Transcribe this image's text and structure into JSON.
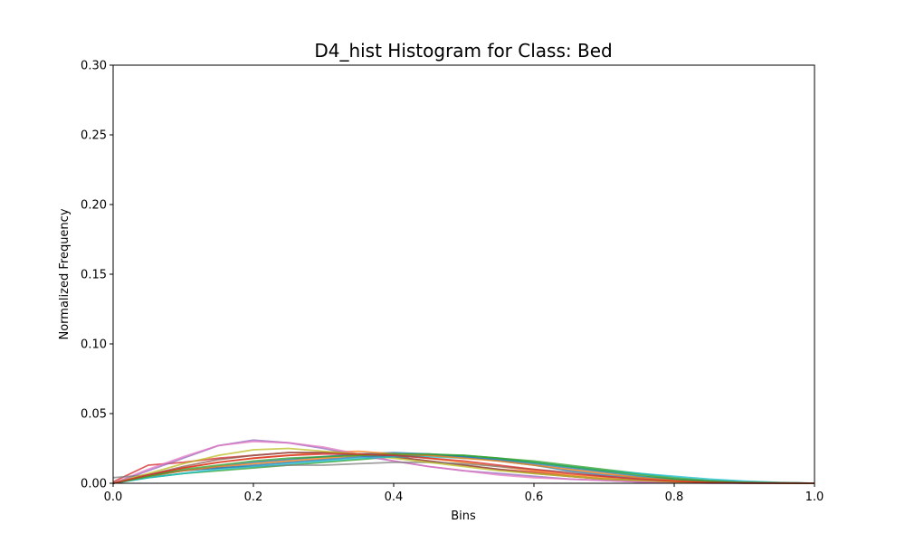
{
  "chart_data": {
    "type": "line",
    "title": "D4_hist Histogram for Class: Bed",
    "xlabel": "Bins",
    "ylabel": "Normalized Frequency",
    "xlim": [
      0.0,
      1.0
    ],
    "ylim": [
      0.0,
      0.3
    ],
    "xticks": [
      "0.0",
      "0.2",
      "0.4",
      "0.6",
      "0.8",
      "1.0"
    ],
    "yticks": [
      "0.00",
      "0.05",
      "0.10",
      "0.15",
      "0.20",
      "0.25",
      "0.30"
    ],
    "grid": false,
    "legend": "none",
    "x": [
      0.0,
      0.05,
      0.1,
      0.15,
      0.2,
      0.25,
      0.3,
      0.35,
      0.4,
      0.45,
      0.5,
      0.55,
      0.6,
      0.65,
      0.7,
      0.75,
      0.8,
      0.85,
      0.9,
      0.95,
      1.0
    ],
    "series": [
      {
        "color": "#1f77b4",
        "values": [
          0.0,
          0.005,
          0.009,
          0.012,
          0.015,
          0.017,
          0.019,
          0.021,
          0.022,
          0.021,
          0.019,
          0.016,
          0.013,
          0.009,
          0.006,
          0.004,
          0.002,
          0.001,
          0.0005,
          0.0002,
          0.0
        ]
      },
      {
        "color": "#ff7f0e",
        "values": [
          0.0,
          0.006,
          0.011,
          0.015,
          0.018,
          0.02,
          0.022,
          0.023,
          0.021,
          0.018,
          0.015,
          0.012,
          0.009,
          0.006,
          0.004,
          0.002,
          0.001,
          0.0005,
          0.0002,
          0.0001,
          0.0
        ]
      },
      {
        "color": "#2ca02c",
        "values": [
          0.0,
          0.004,
          0.007,
          0.009,
          0.011,
          0.013,
          0.015,
          0.017,
          0.019,
          0.02,
          0.02,
          0.018,
          0.016,
          0.013,
          0.01,
          0.007,
          0.004,
          0.002,
          0.001,
          0.0004,
          0.0
        ]
      },
      {
        "color": "#d62728",
        "values": [
          0.001,
          0.013,
          0.015,
          0.018,
          0.02,
          0.022,
          0.022,
          0.021,
          0.019,
          0.016,
          0.013,
          0.01,
          0.008,
          0.005,
          0.003,
          0.002,
          0.001,
          0.0004,
          0.0002,
          0.0001,
          0.0
        ]
      },
      {
        "color": "#9467bd",
        "values": [
          0.0,
          0.009,
          0.018,
          0.027,
          0.031,
          0.029,
          0.025,
          0.02,
          0.016,
          0.012,
          0.009,
          0.007,
          0.005,
          0.003,
          0.002,
          0.001,
          0.0005,
          0.0002,
          0.0001,
          0.0,
          0.0
        ]
      },
      {
        "color": "#8c564b",
        "values": [
          0.0,
          0.006,
          0.012,
          0.017,
          0.02,
          0.022,
          0.022,
          0.021,
          0.019,
          0.016,
          0.013,
          0.01,
          0.007,
          0.005,
          0.003,
          0.002,
          0.001,
          0.0005,
          0.0002,
          0.0001,
          0.0
        ]
      },
      {
        "color": "#e377c2",
        "values": [
          0.0,
          0.01,
          0.019,
          0.027,
          0.03,
          0.029,
          0.026,
          0.021,
          0.016,
          0.012,
          0.009,
          0.006,
          0.004,
          0.003,
          0.002,
          0.001,
          0.0004,
          0.0002,
          0.0001,
          0.0,
          0.0
        ]
      },
      {
        "color": "#7f7f7f",
        "values": [
          0.004,
          0.006,
          0.009,
          0.011,
          0.012,
          0.013,
          0.013,
          0.014,
          0.015,
          0.015,
          0.014,
          0.012,
          0.01,
          0.008,
          0.005,
          0.003,
          0.002,
          0.001,
          0.0005,
          0.0002,
          0.0
        ]
      },
      {
        "color": "#bcbd22",
        "values": [
          0.0,
          0.007,
          0.014,
          0.02,
          0.024,
          0.025,
          0.023,
          0.021,
          0.018,
          0.015,
          0.012,
          0.009,
          0.007,
          0.005,
          0.003,
          0.002,
          0.001,
          0.0005,
          0.0002,
          0.0001,
          0.0
        ]
      },
      {
        "color": "#17becf",
        "values": [
          0.0,
          0.004,
          0.007,
          0.01,
          0.012,
          0.014,
          0.016,
          0.018,
          0.019,
          0.019,
          0.018,
          0.017,
          0.015,
          0.012,
          0.009,
          0.007,
          0.005,
          0.003,
          0.0015,
          0.0005,
          0.0
        ]
      },
      {
        "color": "#1f77b4",
        "values": [
          0.0,
          0.005,
          0.009,
          0.011,
          0.013,
          0.015,
          0.017,
          0.019,
          0.02,
          0.02,
          0.019,
          0.017,
          0.014,
          0.011,
          0.008,
          0.005,
          0.003,
          0.0015,
          0.0006,
          0.0002,
          0.0
        ]
      },
      {
        "color": "#ff7f0e",
        "values": [
          0.0,
          0.005,
          0.009,
          0.012,
          0.014,
          0.016,
          0.018,
          0.02,
          0.021,
          0.02,
          0.018,
          0.016,
          0.013,
          0.01,
          0.007,
          0.004,
          0.002,
          0.001,
          0.0005,
          0.0002,
          0.0
        ]
      },
      {
        "color": "#2ca02c",
        "values": [
          0.0,
          0.005,
          0.01,
          0.013,
          0.016,
          0.018,
          0.019,
          0.02,
          0.021,
          0.021,
          0.02,
          0.018,
          0.015,
          0.012,
          0.009,
          0.006,
          0.003,
          0.0015,
          0.0006,
          0.0002,
          0.0
        ]
      },
      {
        "color": "#d62728",
        "values": [
          0.0,
          0.006,
          0.011,
          0.015,
          0.018,
          0.02,
          0.021,
          0.021,
          0.02,
          0.018,
          0.016,
          0.013,
          0.01,
          0.007,
          0.005,
          0.003,
          0.0015,
          0.0006,
          0.0002,
          0.0001,
          0.0
        ]
      }
    ]
  }
}
